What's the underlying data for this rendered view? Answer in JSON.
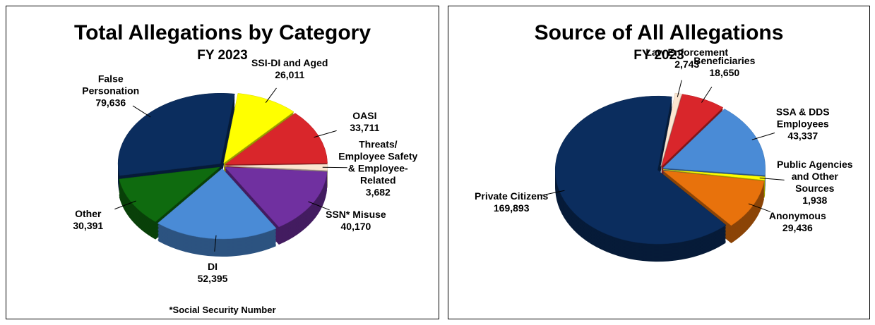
{
  "chart_data": [
    {
      "type": "pie",
      "title": "Total Allegations by Category",
      "subtitle": "FY 2023",
      "categories": [
        "SSI-DI and Aged",
        "OASI",
        "Threats/ Employee Safety & Employee-Related",
        "SSN* Misuse",
        "DI",
        "Other",
        "False Personation"
      ],
      "values": [
        26011,
        33711,
        3682,
        40170,
        52395,
        30391,
        79636
      ],
      "value_labels": [
        "26,011",
        "33,711",
        "3,682",
        "40,170",
        "52,395",
        "30,391",
        "79,636"
      ],
      "colors": [
        "#ffff00",
        "#d9262b",
        "#fbe5d0",
        "#7030a0",
        "#4a8bd6",
        "#0f6b0f",
        "#0b2d5e"
      ],
      "note": "*Social Security Number"
    },
    {
      "type": "pie",
      "title": "Source of All Allegations",
      "subtitle": "FY 2023",
      "categories": [
        "Law Enforcement",
        "Beneficiaries",
        "SSA & DDS Employees",
        "Public Agencies and Other Sources",
        "Anonymous",
        "Private Citizens"
      ],
      "values": [
        2743,
        18650,
        43337,
        1938,
        29436,
        169893
      ],
      "value_labels": [
        "2,743",
        "18,650",
        "43,337",
        "1,938",
        "29,436",
        "169,893"
      ],
      "colors": [
        "#fbe5d0",
        "#d9262b",
        "#4a8bd6",
        "#ffff00",
        "#e8720c",
        "#0b2d5e"
      ]
    }
  ]
}
